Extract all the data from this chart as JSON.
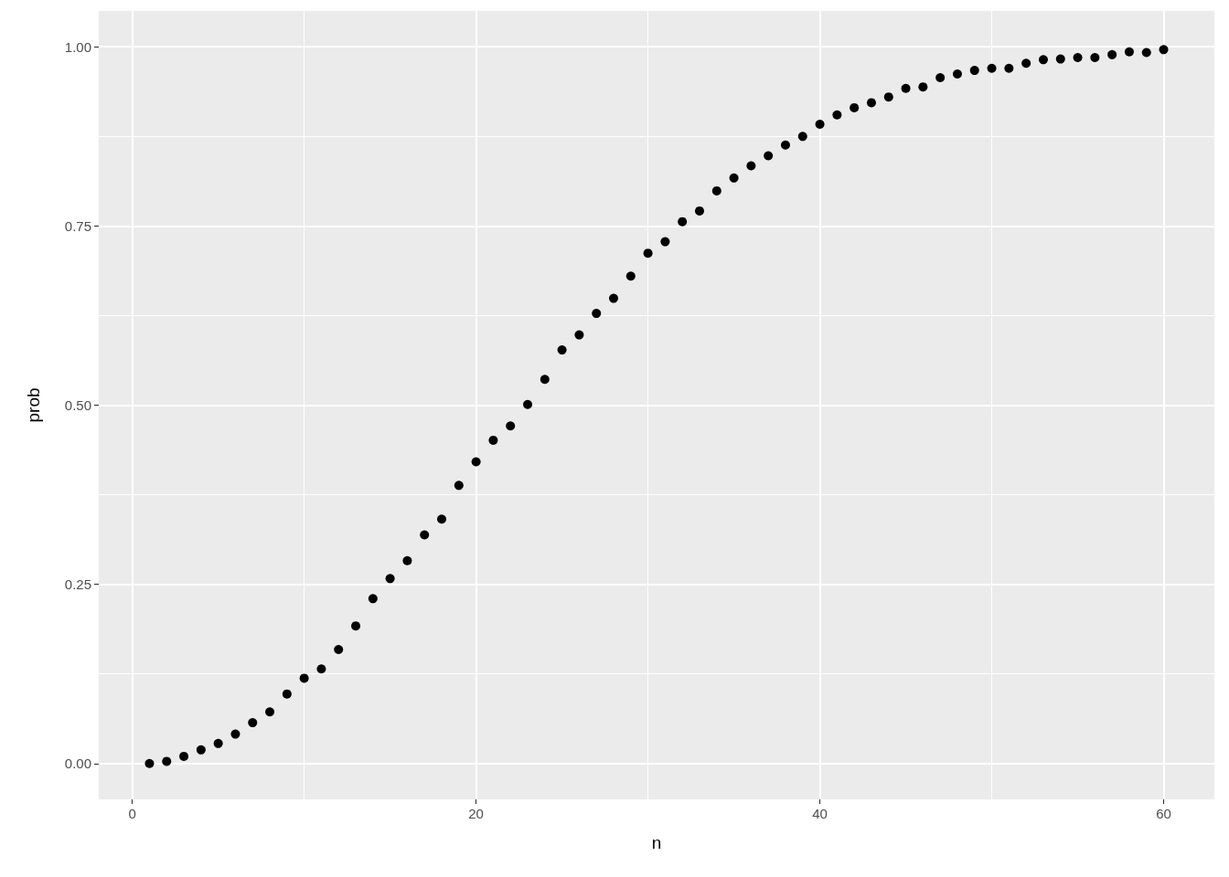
{
  "chart_data": {
    "type": "scatter",
    "xlabel": "n",
    "ylabel": "prob",
    "x": [
      1,
      2,
      3,
      4,
      5,
      6,
      7,
      8,
      9,
      10,
      11,
      12,
      13,
      14,
      15,
      16,
      17,
      18,
      19,
      20,
      21,
      22,
      23,
      24,
      25,
      26,
      27,
      28,
      29,
      30,
      31,
      32,
      33,
      34,
      35,
      36,
      37,
      38,
      39,
      40,
      41,
      42,
      43,
      44,
      45,
      46,
      47,
      48,
      49,
      50,
      51,
      52,
      53,
      54,
      55,
      56,
      57,
      58,
      59,
      60
    ],
    "values": [
      0.0,
      0.003,
      0.01,
      0.019,
      0.028,
      0.041,
      0.057,
      0.072,
      0.097,
      0.119,
      0.132,
      0.159,
      0.192,
      0.23,
      0.258,
      0.283,
      0.319,
      0.341,
      0.388,
      0.421,
      0.451,
      0.471,
      0.501,
      0.536,
      0.577,
      0.598,
      0.628,
      0.649,
      0.68,
      0.712,
      0.728,
      0.756,
      0.771,
      0.799,
      0.817,
      0.834,
      0.848,
      0.863,
      0.875,
      0.892,
      0.905,
      0.915,
      0.922,
      0.93,
      0.942,
      0.944,
      0.957,
      0.962,
      0.967,
      0.97,
      0.97,
      0.977,
      0.982,
      0.983,
      0.985,
      0.985,
      0.989,
      0.993,
      0.992,
      0.996
    ],
    "color": "#000000",
    "marker": "circle",
    "grid": true,
    "xlim": [
      -1.95,
      62.95
    ],
    "xticks": [
      0,
      20,
      40,
      60
    ],
    "ylim": [
      -0.05,
      1.05
    ],
    "yticks": [
      {
        "value": 0,
        "label": "0.00"
      },
      {
        "value": 0.25,
        "label": "0.25"
      },
      {
        "value": 0.5,
        "label": "0.50"
      },
      {
        "value": 0.75,
        "label": "0.75"
      },
      {
        "value": 1,
        "label": "1.00"
      }
    ]
  }
}
